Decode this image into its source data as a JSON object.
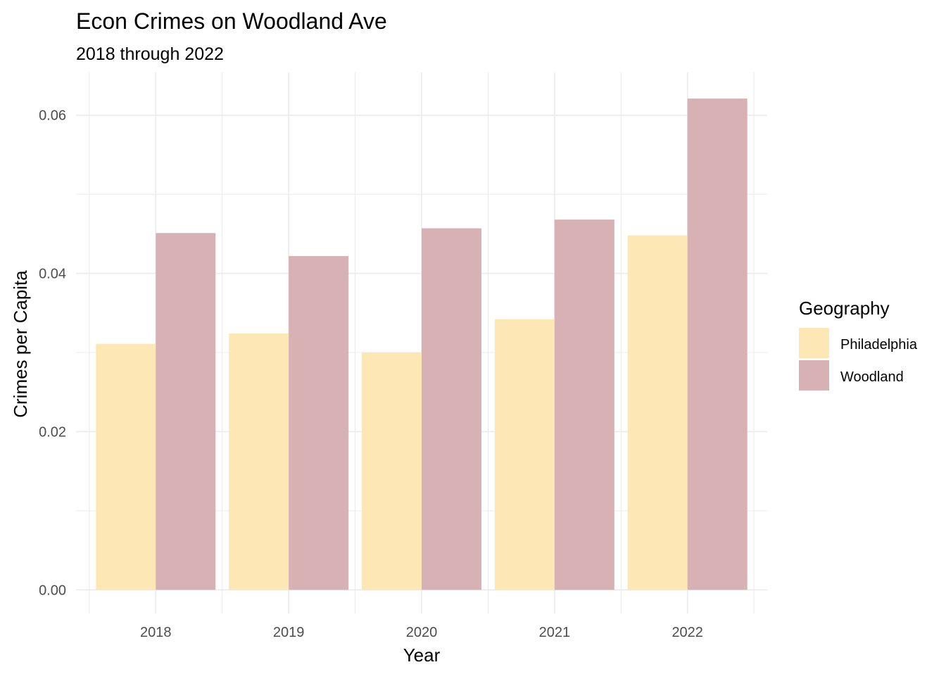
{
  "chart_data": {
    "type": "bar",
    "title": "Econ Crimes on Woodland Ave",
    "subtitle": "2018 through 2022",
    "xlabel": "Year",
    "ylabel": "Crimes per Capita",
    "categories": [
      "2018",
      "2019",
      "2020",
      "2021",
      "2022"
    ],
    "series": [
      {
        "name": "Philadelphia",
        "color": "#FDE7B5",
        "values": [
          0.0311,
          0.0324,
          0.03,
          0.0342,
          0.0448
        ]
      },
      {
        "name": "Woodland",
        "color": "#D7B1B3",
        "values": [
          0.0451,
          0.0422,
          0.0457,
          0.0468,
          0.0621
        ]
      }
    ],
    "ylim": [
      -0.003,
      0.0654
    ],
    "yticks": [
      0.0,
      0.02,
      0.04,
      0.06
    ],
    "ytick_labels": [
      "0.00",
      "0.02",
      "0.04",
      "0.06"
    ],
    "legend": {
      "title": "Geography",
      "position": "right"
    },
    "grid": true,
    "grid_color": "#EBEBEB"
  }
}
